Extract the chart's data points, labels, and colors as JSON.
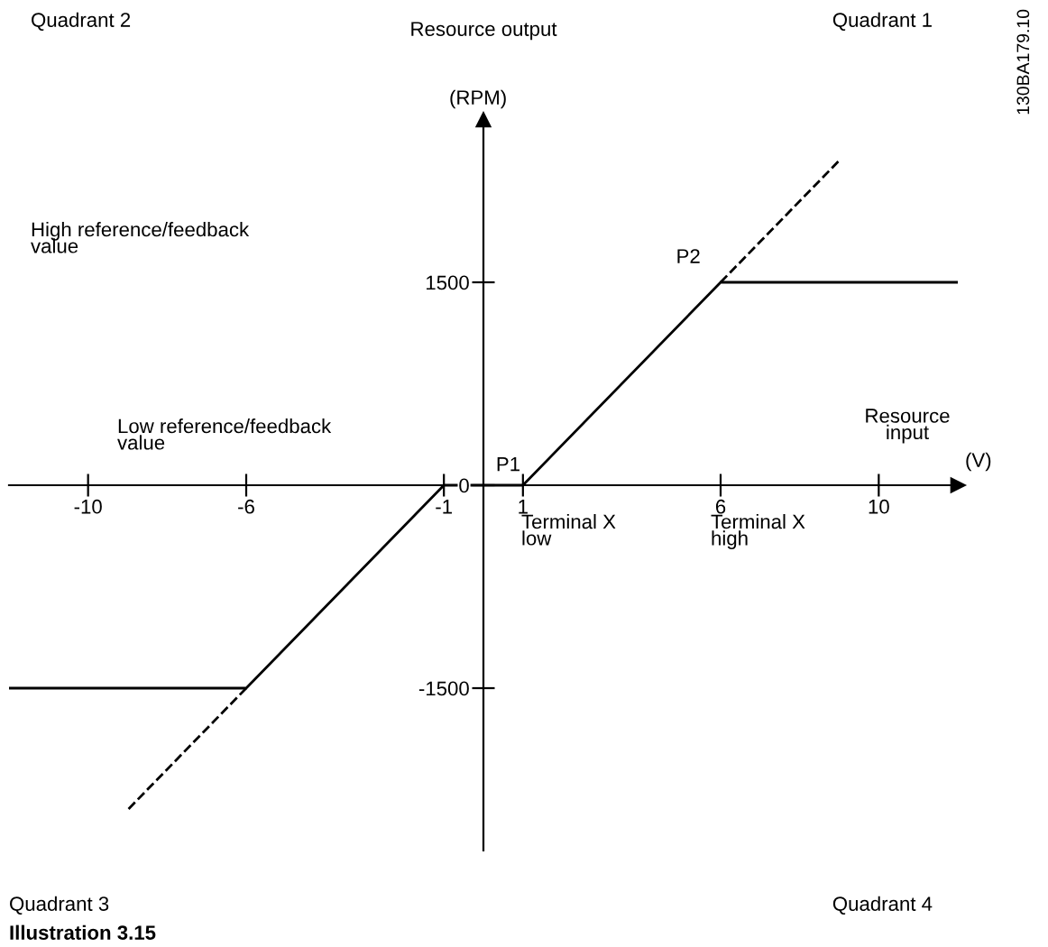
{
  "chart_data": {
    "type": "line",
    "ylabel": "Resource output",
    "xlabel": "(V)",
    "xlim": [
      -12,
      12
    ],
    "ylim": [
      -2700,
      2700
    ],
    "xticks": [
      -10,
      -6,
      -1,
      1,
      6,
      10
    ],
    "yticks": [
      -1500,
      0,
      1500
    ],
    "grid": false,
    "legend": false,
    "marker": "none",
    "series": [
      {
        "color": "#000000",
        "line_style": "solid",
        "x": [
          -12,
          -6,
          -1,
          1,
          6,
          12
        ],
        "values": [
          -1500,
          -1500,
          0,
          0,
          1500,
          1500
        ]
      },
      {
        "color": "#000000",
        "line_style": "dashed",
        "x": [
          6,
          9
        ],
        "values": [
          1500,
          2400
        ]
      },
      {
        "color": "#000000",
        "line_style": "dashed",
        "x": [
          -6,
          -9
        ],
        "values": [
          -1500,
          -2400
        ]
      }
    ],
    "annotations": [
      {
        "text": "P1",
        "x": 1,
        "y": 0
      },
      {
        "text": "P2",
        "x": 6,
        "y": 1500
      },
      "Terminal X\nlow",
      "Terminal X\nhigh",
      "Resource\ninput",
      "(RPM)",
      "High reference/feedback\nvalue",
      "Low reference/feedback\nvalue",
      "Quadrant 1",
      "Quadrant 2",
      "Quadrant 3",
      "Quadrant 4",
      "Illustration 3.15",
      "130BA179.10"
    ]
  }
}
